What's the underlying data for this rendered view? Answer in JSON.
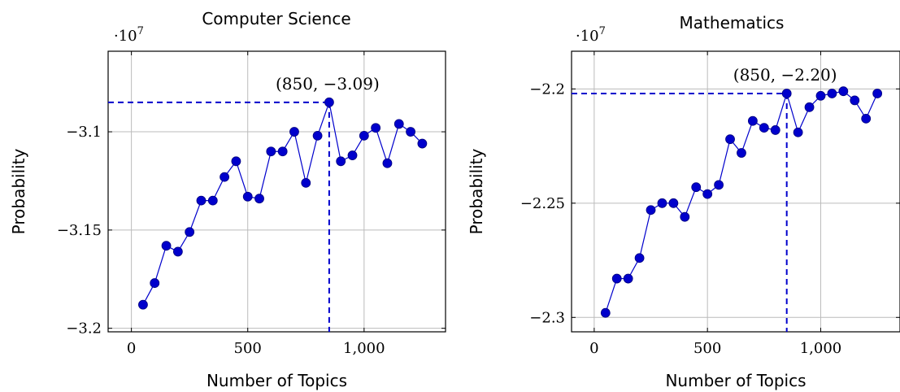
{
  "chart_data": [
    {
      "type": "line",
      "title": "Computer Science",
      "xlabel": "Number of Topics",
      "ylabel": "Probability",
      "scale_label": "·10",
      "scale_exponent": "7",
      "xlim": [
        -100,
        1350
      ],
      "ylim": [
        -3.2018,
        -3.059
      ],
      "xticks": [
        0,
        500,
        1000
      ],
      "xtick_labels": [
        "0",
        "500",
        "1,000"
      ],
      "yticks": [
        -3.2,
        -3.15,
        -3.1
      ],
      "ytick_labels": [
        "−3.2",
        "−3.15",
        "−3.1"
      ],
      "grid": true,
      "color": "#0000cc",
      "series": [
        {
          "x": [
            50,
            100,
            150,
            200,
            250,
            300,
            350,
            400,
            450,
            500,
            550,
            600,
            650,
            700,
            750,
            800,
            850,
            900,
            950,
            1000,
            1050,
            1100,
            1150,
            1200,
            1250
          ],
          "values": [
            -3.188,
            -3.177,
            -3.158,
            -3.161,
            -3.151,
            -3.135,
            -3.135,
            -3.123,
            -3.115,
            -3.133,
            -3.134,
            -3.11,
            -3.11,
            -3.1,
            -3.126,
            -3.102,
            -3.085,
            -3.115,
            -3.112,
            -3.102,
            -3.098,
            -3.116,
            -3.096,
            -3.1,
            -3.106
          ]
        }
      ],
      "annotation": {
        "x": 850,
        "y": -3.085,
        "text": "(850, −3.09)"
      }
    },
    {
      "type": "line",
      "title": "Mathematics",
      "xlabel": "Number of Topics",
      "ylabel": "Probability",
      "scale_label": "·10",
      "scale_exponent": "7",
      "xlim": [
        -100,
        1350
      ],
      "ylim": [
        -2.3063,
        -2.1835
      ],
      "xticks": [
        0,
        500,
        1000
      ],
      "xtick_labels": [
        "0",
        "500",
        "1,000"
      ],
      "yticks": [
        -2.3,
        -2.25,
        -2.2
      ],
      "ytick_labels": [
        "−2.3",
        "−2.25",
        "−2.2"
      ],
      "grid": true,
      "color": "#0000cc",
      "series": [
        {
          "x": [
            50,
            100,
            150,
            200,
            250,
            300,
            350,
            400,
            450,
            500,
            550,
            600,
            650,
            700,
            750,
            800,
            850,
            900,
            950,
            1000,
            1050,
            1100,
            1150,
            1200,
            1250
          ],
          "values": [
            -2.298,
            -2.283,
            -2.283,
            -2.274,
            -2.253,
            -2.25,
            -2.25,
            -2.256,
            -2.243,
            -2.246,
            -2.242,
            -2.222,
            -2.228,
            -2.214,
            -2.217,
            -2.218,
            -2.202,
            -2.219,
            -2.208,
            -2.203,
            -2.202,
            -2.201,
            -2.205,
            -2.213,
            -2.202
          ]
        }
      ],
      "annotation": {
        "x": 850,
        "y": -2.202,
        "text": "(850, −2.20)"
      }
    }
  ]
}
